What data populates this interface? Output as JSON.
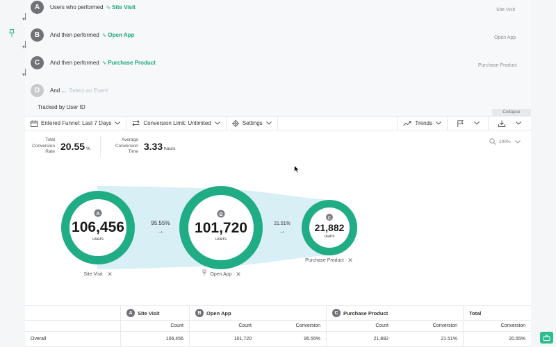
{
  "steps": [
    {
      "letter": "A",
      "prefix": "Users who performed",
      "event": "Site Visit",
      "right_label": "Site Visit",
      "event_icon": "event-wave-icon"
    },
    {
      "letter": "B",
      "prefix": "And then performed",
      "event": "Open App",
      "right_label": "Open App",
      "event_icon": "event-wave-icon"
    },
    {
      "letter": "C",
      "prefix": "And then performed",
      "event": "Purchase Product",
      "right_label": "Purchase Product",
      "event_icon": "event-wave-icon"
    },
    {
      "letter": "D",
      "prefix": "And ...",
      "placeholder": "Select an Event"
    }
  ],
  "tracked_by": "Tracked by User ID",
  "collapse_label": "Collapse",
  "toolbar": {
    "funnel": "Entered Funnel: Last 7 Days",
    "conversion_limit": "Conversion Limit: Unlimited",
    "settings": "Settings",
    "trends": "Trends"
  },
  "stats": {
    "total_label_1": "Total",
    "total_label_2": "Conversion",
    "total_label_3": "Rate",
    "total_value": "20.55",
    "total_unit": "%",
    "avg_label_1": "Average",
    "avg_label_2": "Conversion",
    "avg_label_3": "Time",
    "avg_value": "3.33",
    "avg_unit": "hours"
  },
  "zoom": "100%",
  "funnel": {
    "users_label": "users",
    "nodes": [
      {
        "letter": "A",
        "value": "106,456",
        "name": "Site Visit"
      },
      {
        "letter": "B",
        "value": "101,720",
        "name": "Open App"
      },
      {
        "letter": "C",
        "value": "21,882",
        "name": "Purchase Product"
      }
    ],
    "conversions": [
      "95.55%",
      "21.51%"
    ],
    "arrow": "→",
    "remove": "✕"
  },
  "table": {
    "headers": {
      "a": "Site Visit",
      "b": "Open App",
      "c": "Purchase Product",
      "total": "Total"
    },
    "letters": {
      "a": "A",
      "b": "B",
      "c": "C"
    },
    "sub": {
      "count": "Count",
      "conversion": "Conversion"
    },
    "overall": {
      "label": "Overall",
      "a_count": "106,456",
      "b_count": "101,720",
      "b_conv": "95.55%",
      "c_count": "21,882",
      "c_conv": "21.51%",
      "total_conv": "20.55%"
    }
  },
  "colors": {
    "accent": "#20ac84",
    "flow": "#d5eef6",
    "badge": "#6f7378"
  }
}
